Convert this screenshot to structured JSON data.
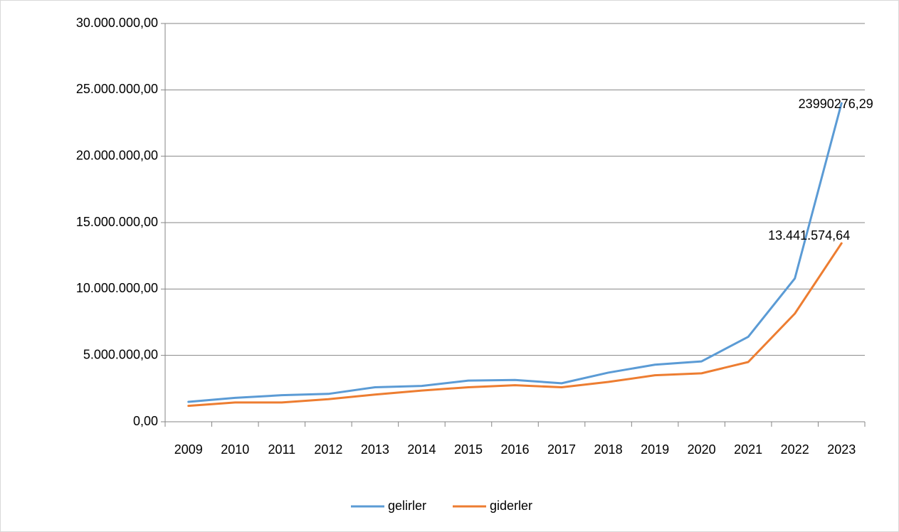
{
  "chart_data": {
    "type": "line",
    "categories": [
      "2009",
      "2010",
      "2011",
      "2012",
      "2013",
      "2014",
      "2015",
      "2016",
      "2017",
      "2018",
      "2019",
      "2020",
      "2021",
      "2022",
      "2023"
    ],
    "series": [
      {
        "name": "gelirler",
        "color": "#5b9bd5",
        "values": [
          1500000,
          1800000,
          2000000,
          2100000,
          2600000,
          2700000,
          3100000,
          3150000,
          2900000,
          3700000,
          4300000,
          4550000,
          6400000,
          10800000,
          23990276.29
        ],
        "value_labels": [
          null,
          null,
          null,
          null,
          null,
          null,
          null,
          null,
          null,
          null,
          null,
          null,
          null,
          null,
          "23990276,29"
        ]
      },
      {
        "name": "giderler",
        "color": "#ed7d31",
        "values": [
          1200000,
          1450000,
          1450000,
          1700000,
          2050000,
          2350000,
          2600000,
          2750000,
          2600000,
          3000000,
          3500000,
          3650000,
          4500000,
          8150000,
          13441574.64
        ],
        "value_labels": [
          null,
          null,
          null,
          null,
          null,
          null,
          null,
          null,
          null,
          null,
          null,
          null,
          null,
          null,
          "13.441.574,64"
        ]
      }
    ],
    "ylim": [
      0,
      30000000
    ],
    "yticks": [
      {
        "value": 0,
        "label": "0,00"
      },
      {
        "value": 5000000,
        "label": "5.000.000,00"
      },
      {
        "value": 10000000,
        "label": "10.000.000,00"
      },
      {
        "value": 15000000,
        "label": "15.000.000,00"
      },
      {
        "value": 20000000,
        "label": "20.000.000,00"
      },
      {
        "value": 25000000,
        "label": "25.000.000,00"
      },
      {
        "value": 30000000,
        "label": "30.000.000,00"
      }
    ],
    "grid": true,
    "legend": "bottom"
  }
}
